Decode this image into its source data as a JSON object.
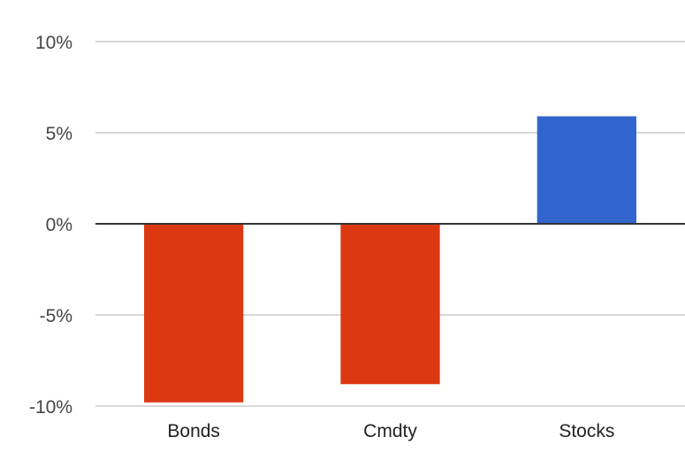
{
  "chart_data": {
    "type": "bar",
    "title": "",
    "xlabel": "",
    "ylabel": "",
    "categories": [
      "Bonds",
      "Cmdty",
      "Stocks"
    ],
    "values": [
      -9.8,
      -8.8,
      5.9
    ],
    "ylim": [
      -10,
      10
    ],
    "yticks": [
      10,
      5,
      0,
      -5,
      -10
    ],
    "ytick_labels": [
      "10%",
      "5%",
      "0%",
      "-5%",
      "-10%"
    ],
    "grid": true,
    "legend": "none",
    "colors": {
      "negative": "#dc3912",
      "positive": "#3366cc",
      "gridline": "#cccccc",
      "baseline": "#333333"
    }
  }
}
